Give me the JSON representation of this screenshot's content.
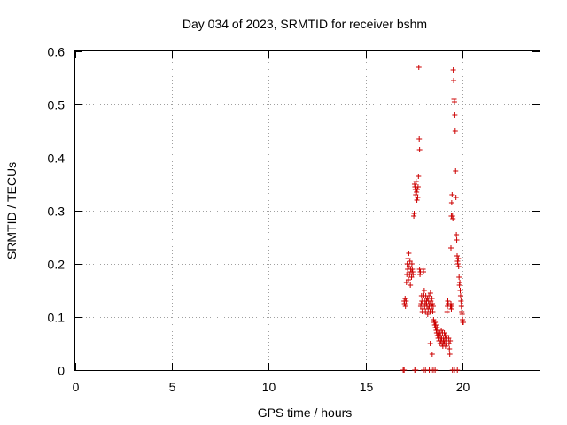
{
  "chart_data": {
    "type": "scatter",
    "title": "Day 034 of 2023, SRMTID for receiver bshm",
    "xlabel": "GPS time / hours",
    "ylabel": "SRMTID / TECUs",
    "xlim": [
      0,
      24
    ],
    "ylim": [
      0,
      0.6
    ],
    "xticks": [
      0,
      5,
      10,
      15,
      20
    ],
    "xtick_labels": [
      "0",
      "5",
      "10",
      "15",
      "20"
    ],
    "yticks": [
      0,
      0.1,
      0.2,
      0.3,
      0.4,
      0.5,
      0.6
    ],
    "ytick_labels": [
      "0",
      "0.1",
      "0.2",
      "0.3",
      "0.4",
      "0.5",
      "0.6"
    ],
    "grid": true,
    "marker": "+",
    "color": "#cc0000",
    "series": [
      {
        "name": "bshm",
        "points": [
          [
            16.95,
            0.0
          ],
          [
            17.0,
            0.0
          ],
          [
            17.55,
            0.0
          ],
          [
            17.6,
            0.0
          ],
          [
            18.0,
            0.0
          ],
          [
            18.1,
            0.0
          ],
          [
            18.3,
            0.0
          ],
          [
            18.4,
            0.0
          ],
          [
            18.5,
            0.0
          ],
          [
            18.6,
            0.0
          ],
          [
            19.5,
            0.0
          ],
          [
            19.6,
            0.0
          ],
          [
            19.75,
            0.0
          ],
          [
            17.0,
            0.13
          ],
          [
            17.02,
            0.125
          ],
          [
            17.05,
            0.135
          ],
          [
            17.07,
            0.12
          ],
          [
            17.1,
            0.13
          ],
          [
            17.12,
            0.165
          ],
          [
            17.14,
            0.18
          ],
          [
            17.16,
            0.2
          ],
          [
            17.18,
            0.19
          ],
          [
            17.2,
            0.21
          ],
          [
            17.22,
            0.17
          ],
          [
            17.24,
            0.22
          ],
          [
            17.26,
            0.195
          ],
          [
            17.28,
            0.18
          ],
          [
            17.3,
            0.205
          ],
          [
            17.32,
            0.16
          ],
          [
            17.34,
            0.19
          ],
          [
            17.36,
            0.185
          ],
          [
            17.38,
            0.175
          ],
          [
            17.4,
            0.2
          ],
          [
            17.42,
            0.19
          ],
          [
            17.44,
            0.185
          ],
          [
            17.46,
            0.18
          ],
          [
            17.5,
            0.29
          ],
          [
            17.52,
            0.295
          ],
          [
            17.54,
            0.35
          ],
          [
            17.56,
            0.345
          ],
          [
            17.58,
            0.34
          ],
          [
            17.6,
            0.33
          ],
          [
            17.62,
            0.355
          ],
          [
            17.64,
            0.335
          ],
          [
            17.66,
            0.32
          ],
          [
            17.68,
            0.34
          ],
          [
            17.7,
            0.325
          ],
          [
            17.72,
            0.345
          ],
          [
            17.74,
            0.365
          ],
          [
            17.76,
            0.57
          ],
          [
            17.78,
            0.435
          ],
          [
            17.8,
            0.415
          ],
          [
            17.8,
            0.19
          ],
          [
            17.82,
            0.18
          ],
          [
            17.84,
            0.185
          ],
          [
            17.86,
            0.12
          ],
          [
            17.88,
            0.125
          ],
          [
            17.9,
            0.14
          ],
          [
            17.92,
            0.13
          ],
          [
            17.94,
            0.11
          ],
          [
            17.96,
            0.115
          ],
          [
            17.98,
            0.19
          ],
          [
            18.0,
            0.185
          ],
          [
            18.02,
            0.14
          ],
          [
            18.04,
            0.15
          ],
          [
            18.06,
            0.12
          ],
          [
            18.08,
            0.13
          ],
          [
            18.1,
            0.11
          ],
          [
            18.12,
            0.14
          ],
          [
            18.14,
            0.125
          ],
          [
            18.16,
            0.13
          ],
          [
            18.18,
            0.12
          ],
          [
            18.2,
            0.135
          ],
          [
            18.22,
            0.105
          ],
          [
            18.24,
            0.115
          ],
          [
            18.26,
            0.13
          ],
          [
            18.28,
            0.14
          ],
          [
            18.3,
            0.12
          ],
          [
            18.32,
            0.125
          ],
          [
            18.34,
            0.11
          ],
          [
            18.36,
            0.145
          ],
          [
            18.38,
            0.13
          ],
          [
            18.4,
            0.115
          ],
          [
            18.42,
            0.12
          ],
          [
            18.44,
            0.135
          ],
          [
            18.46,
            0.125
          ],
          [
            18.48,
            0.11
          ],
          [
            18.5,
            0.12
          ],
          [
            18.35,
            0.05
          ],
          [
            18.45,
            0.03
          ],
          [
            18.52,
            0.095
          ],
          [
            18.55,
            0.09
          ],
          [
            18.58,
            0.085
          ],
          [
            18.6,
            0.09
          ],
          [
            18.62,
            0.08
          ],
          [
            18.64,
            0.085
          ],
          [
            18.66,
            0.075
          ],
          [
            18.68,
            0.07
          ],
          [
            18.7,
            0.08
          ],
          [
            18.72,
            0.065
          ],
          [
            18.74,
            0.07
          ],
          [
            18.76,
            0.06
          ],
          [
            18.78,
            0.065
          ],
          [
            18.8,
            0.055
          ],
          [
            18.82,
            0.06
          ],
          [
            18.84,
            0.07
          ],
          [
            18.86,
            0.05
          ],
          [
            18.88,
            0.065
          ],
          [
            18.9,
            0.055
          ],
          [
            18.92,
            0.075
          ],
          [
            18.94,
            0.06
          ],
          [
            18.96,
            0.05
          ],
          [
            18.98,
            0.07
          ],
          [
            19.0,
            0.045
          ],
          [
            19.02,
            0.055
          ],
          [
            19.04,
            0.06
          ],
          [
            19.06,
            0.05
          ],
          [
            19.08,
            0.07
          ],
          [
            19.1,
            0.055
          ],
          [
            19.12,
            0.065
          ],
          [
            19.14,
            0.045
          ],
          [
            19.16,
            0.06
          ],
          [
            19.18,
            0.05
          ],
          [
            19.2,
            0.065
          ],
          [
            19.22,
            0.11
          ],
          [
            19.24,
            0.12
          ],
          [
            19.26,
            0.13
          ],
          [
            19.28,
            0.125
          ],
          [
            19.3,
            0.06
          ],
          [
            19.32,
            0.05
          ],
          [
            19.34,
            0.04
          ],
          [
            19.36,
            0.03
          ],
          [
            19.38,
            0.055
          ],
          [
            19.4,
            0.12
          ],
          [
            19.42,
            0.125
          ],
          [
            19.44,
            0.115
          ],
          [
            19.46,
            0.12
          ],
          [
            19.42,
            0.23
          ],
          [
            19.44,
            0.29
          ],
          [
            19.46,
            0.315
          ],
          [
            19.48,
            0.33
          ],
          [
            19.5,
            0.29
          ],
          [
            19.52,
            0.285
          ],
          [
            19.54,
            0.565
          ],
          [
            19.56,
            0.545
          ],
          [
            19.58,
            0.51
          ],
          [
            19.6,
            0.505
          ],
          [
            19.62,
            0.48
          ],
          [
            19.64,
            0.45
          ],
          [
            19.66,
            0.375
          ],
          [
            19.68,
            0.325
          ],
          [
            19.7,
            0.255
          ],
          [
            19.72,
            0.245
          ],
          [
            19.74,
            0.215
          ],
          [
            19.76,
            0.205
          ],
          [
            19.78,
            0.2
          ],
          [
            19.8,
            0.21
          ],
          [
            19.82,
            0.195
          ],
          [
            19.84,
            0.175
          ],
          [
            19.86,
            0.16
          ],
          [
            19.88,
            0.165
          ],
          [
            19.9,
            0.15
          ],
          [
            19.92,
            0.14
          ],
          [
            19.94,
            0.13
          ],
          [
            19.96,
            0.12
          ],
          [
            19.98,
            0.11
          ],
          [
            20.0,
            0.105
          ],
          [
            20.02,
            0.095
          ],
          [
            20.04,
            0.09
          ],
          [
            20.06,
            0.09
          ]
        ]
      }
    ]
  }
}
